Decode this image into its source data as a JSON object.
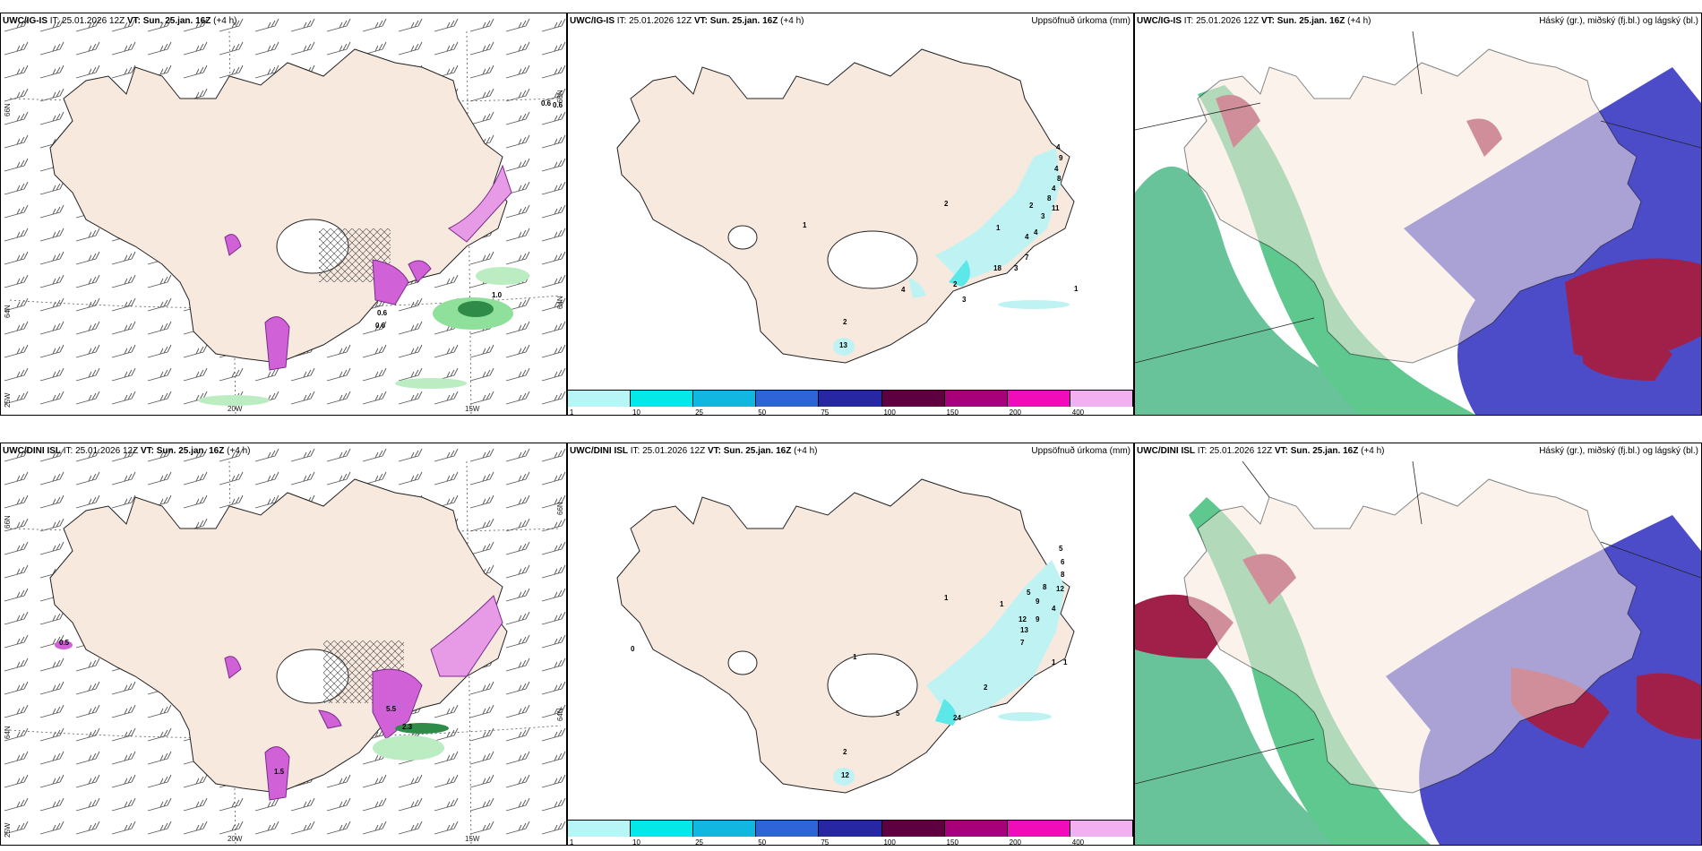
{
  "rows": [
    {
      "panel1": {
        "model": "UWC/IG-IS",
        "it": "IT: 25.01.2026 12Z",
        "vt": "VT: Sun. 25.jan. 16Z",
        "lead": "(+4 h)",
        "lat_left": "66N",
        "lat_left2": "64N",
        "lon_left": "25W",
        "lon_20": "20W",
        "lon_15": "15W",
        "lat_right1": "66N",
        "lat_right2": "64N",
        "values": [
          "0.6",
          "0.6",
          "1.0",
          "0.6",
          "0.6"
        ]
      },
      "panel2": {
        "model": "UWC/IG-IS",
        "it": "IT: 25.01.2026 12Z",
        "vt": "VT: Sun. 25.jan. 16Z",
        "lead": "(+4 h)",
        "right": "Uppsöfnuð úrkoma (mm)",
        "values": [
          "4",
          "9",
          "4",
          "8",
          "4",
          "8",
          "11",
          "2",
          "3",
          "2",
          "1",
          "4",
          "4",
          "7",
          "3",
          "18",
          "1",
          "2",
          "4",
          "3",
          "1",
          "2",
          "13"
        ]
      },
      "panel3": {
        "model": "UWC/IG-IS",
        "it": "IT: 25.01.2026 12Z",
        "vt": "VT: Sun. 25.jan. 16Z",
        "lead": "(+4 h)",
        "right": "Háský (gr.), miðský (fj.bl.) og lágský (bl.)"
      }
    },
    {
      "panel1": {
        "model": "UWC/DINI ISL",
        "it": "IT: 25.01.2026 12Z",
        "vt": "VT: Sun. 25.jan. 16Z",
        "lead": "(+4",
        "lead2": "h)",
        "lat_left": "66N",
        "lat_left2": "64N",
        "lon_left": "25W",
        "lon_20": "20W",
        "lon_15": "15W",
        "lat_right1": "66N",
        "lat_right2": "64N",
        "values": [
          "0.5",
          "2.3",
          "5.5",
          "1.5"
        ]
      },
      "panel2": {
        "model": "UWC/DINI ISL",
        "it": "IT: 25.01.2026 12Z",
        "vt": "VT: Sun. 25.jan. 16Z",
        "lead": "(+4 h)",
        "right": "Uppsöfnuð úrkoma (mm)",
        "values": [
          "5",
          "6",
          "8",
          "12",
          "5",
          "8",
          "9",
          "4",
          "12",
          "9",
          "13",
          "7",
          "1",
          "1",
          "1",
          "1",
          "2",
          "5",
          "24",
          "2",
          "12",
          "1",
          "0"
        ]
      },
      "panel3": {
        "model": "UWC/DINI ISL",
        "it": "IT: 25.01.2026 12Z",
        "vt": "VT: Sun. 25.jan. 16Z",
        "lead": "(+4 h)",
        "right": "Háský (gr.), miðský (fj.bl.) og lágský (bl.)"
      }
    }
  ],
  "colorbar": {
    "ticks": [
      "1",
      "10",
      "25",
      "50",
      "75",
      "100",
      "150",
      "200",
      "400"
    ],
    "colors": [
      "#b7f6f6",
      "#05e8e8",
      "#10b7e0",
      "#2f63d8",
      "#2727a4",
      "#5e0040",
      "#a8007a",
      "#f00cb8",
      "#f3b0f0"
    ]
  },
  "colors": {
    "land": "#f8e9de",
    "land_outline": "#222222",
    "precip_pink": "#d061d6",
    "precip_purple": "#7a2a8a",
    "green": "#8fe09a",
    "cyan": "#bff3f3",
    "cloud_high": "#4fb888",
    "cloud_mid": "#a0204a",
    "cloud_low": "#4c4cc8"
  }
}
